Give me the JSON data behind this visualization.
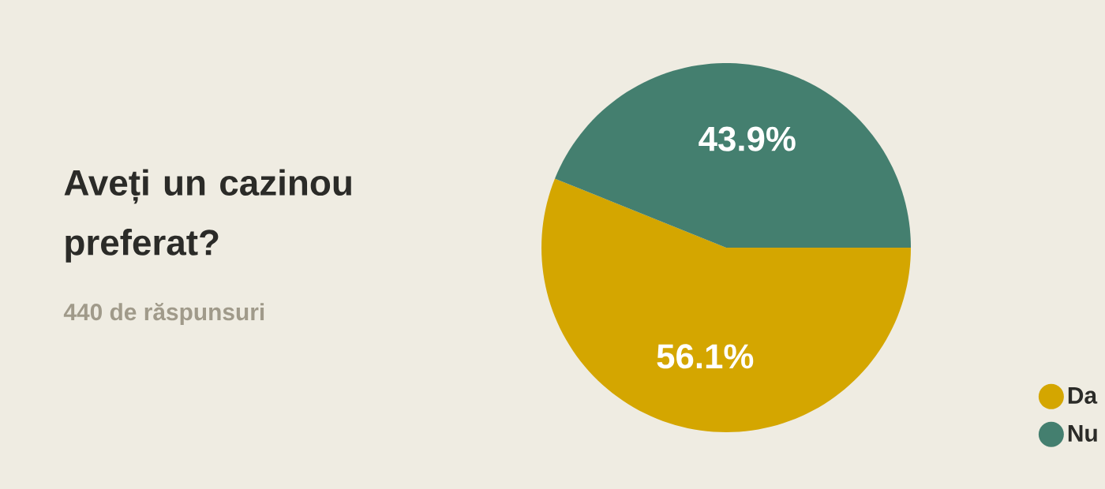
{
  "chart_data": {
    "type": "pie",
    "title": "Aveți un cazinou preferat?",
    "subtitle": "440 de răspunsuri",
    "categories": [
      "Da",
      "Nu"
    ],
    "values": [
      56.1,
      43.9
    ],
    "colors": [
      "#d4a600",
      "#447f6f"
    ],
    "value_labels": [
      "56.1%",
      "43.9%"
    ],
    "legend": "right"
  }
}
